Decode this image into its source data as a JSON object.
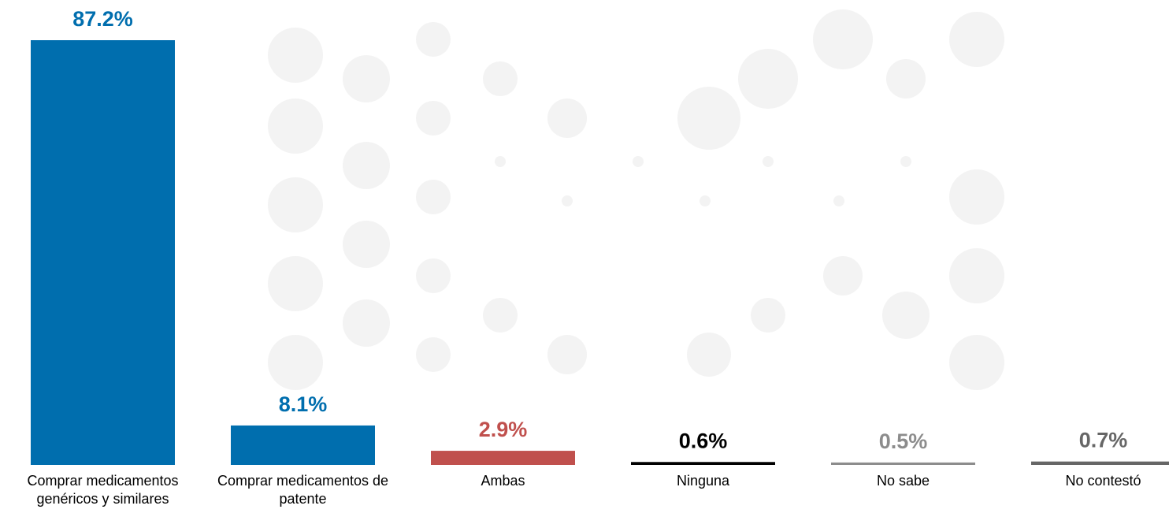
{
  "chart_data": {
    "type": "bar",
    "categories": [
      "Comprar medicamentos genéricos y similares",
      "Comprar medicamentos de patente",
      "Ambas",
      "Ninguna",
      "No sabe",
      "No contestó"
    ],
    "values": [
      87.2,
      8.1,
      2.9,
      0.6,
      0.5,
      0.7
    ],
    "value_labels": [
      "87.2%",
      "8.1%",
      "2.9%",
      "0.6%",
      "0.5%",
      "0.7%"
    ],
    "colors": [
      "#006eae",
      "#006eae",
      "#c0504d",
      "#000000",
      "#8c8c8c",
      "#666666"
    ]
  }
}
